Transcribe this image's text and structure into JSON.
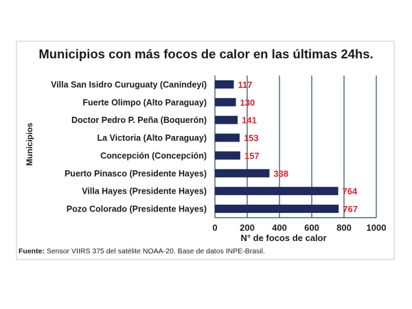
{
  "colors": {
    "bar": "#1f2a5e",
    "value_label": "#e0202c",
    "grid": "#1f4a50",
    "text": "#1a1a1a",
    "frame": "#c8c8c8"
  },
  "chart_data": {
    "type": "bar",
    "orientation": "horizontal",
    "title": "Municipios con más focos de calor en las últimas 24hs.",
    "xlabel": "N° de focos de calor",
    "ylabel": "Municipios",
    "categories": [
      "Villa San Isidro Curuguaty (Canindeyí)",
      "Fuerte Olimpo (Alto Paraguay)",
      "Doctor Pedro P. Peña (Boquerón)",
      "La Victoria (Alto Paraguay)",
      "Concepción (Concepción)",
      "Puerto Pinasco (Presidente Hayes)",
      "Villa Hayes (Presidente Hayes)",
      "Pozo Colorado (Presidente Hayes)"
    ],
    "values": [
      117,
      130,
      141,
      153,
      157,
      338,
      764,
      767
    ],
    "data_labels": [
      "117",
      "130",
      "141",
      "153",
      "157",
      "338",
      "764",
      "767"
    ],
    "xlim": [
      0,
      1000
    ],
    "xticks": [
      0,
      200,
      400,
      600,
      800,
      1000
    ],
    "xtick_labels": [
      "0",
      "200",
      "400",
      "600",
      "800",
      "1000"
    ],
    "grid": "vertical",
    "legend": "none"
  },
  "footnote": {
    "label": "Fuente:",
    "text": " Sensor VIIRS 375 del satélite NOAA-20. Base de datos INPE-Brasil."
  }
}
